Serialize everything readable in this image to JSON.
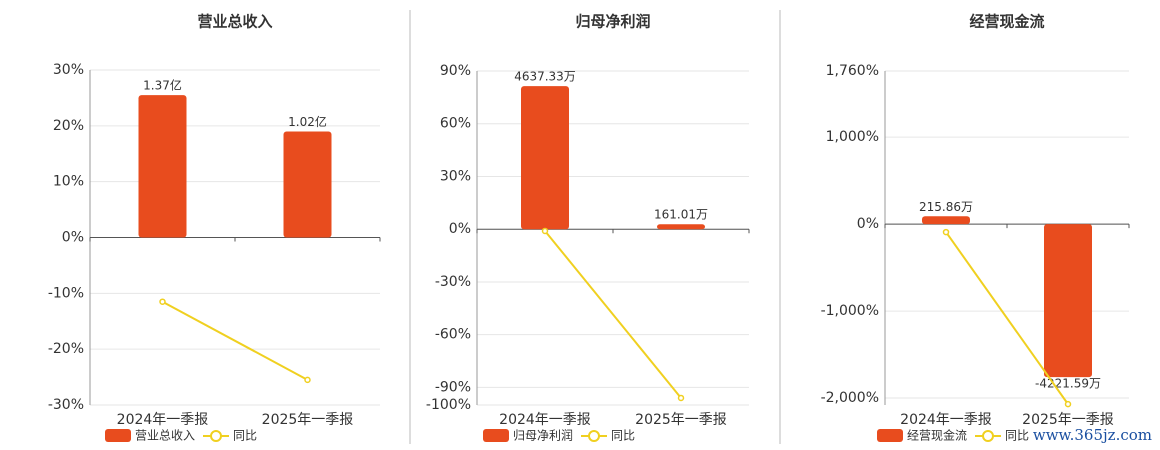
{
  "chart_data": [
    {
      "type": "combo",
      "title": "营业总收入",
      "categories": [
        "2024年一季报",
        "2025年一季报"
      ],
      "series": [
        {
          "name": "营业总收入",
          "type": "bar",
          "axis": "y2",
          "color": "#e84c1e",
          "values": [
            1.37,
            1.02
          ],
          "value_labels": [
            "1.37亿",
            "1.02亿"
          ]
        },
        {
          "name": "同比",
          "type": "line",
          "color": "#f0d020",
          "values": [
            -11.5,
            -25.5
          ]
        }
      ],
      "ylim": [
        -30,
        30
      ],
      "y2lim": [
        -1.612,
        1.612
      ],
      "yticks": [
        {
          "value": 30,
          "label": "30%"
        },
        {
          "value": 20,
          "label": "20%"
        },
        {
          "value": 10,
          "label": "10%"
        },
        {
          "value": 0,
          "label": "0%"
        },
        {
          "value": -10,
          "label": "-10%"
        },
        {
          "value": -20,
          "label": "-20%"
        },
        {
          "value": -30,
          "label": "-30%"
        }
      ],
      "grid": true
    },
    {
      "type": "combo",
      "title": "归母净利润",
      "categories": [
        "2024年一季报",
        "2025年一季报"
      ],
      "series": [
        {
          "name": "归母净利润",
          "type": "bar",
          "axis": "y2",
          "color": "#e84c1e",
          "values": [
            4637.33,
            161.01
          ],
          "value_labels": [
            "4637.33万",
            "161.01万"
          ]
        },
        {
          "name": "同比",
          "type": "line",
          "color": "#f0d020",
          "values": [
            -1,
            -96
          ]
        }
      ],
      "ylim": [
        -100,
        90
      ],
      "y2lim": [
        -5697,
        5127
      ],
      "yticks": [
        {
          "value": 90,
          "label": "90%"
        },
        {
          "value": 60,
          "label": "60%"
        },
        {
          "value": 30,
          "label": "30%"
        },
        {
          "value": 0,
          "label": "0%"
        },
        {
          "value": -30,
          "label": "-30%"
        },
        {
          "value": -60,
          "label": "-60%"
        },
        {
          "value": -90,
          "label": "-90%"
        },
        {
          "value": -100,
          "label": "-100%"
        }
      ],
      "grid": true
    },
    {
      "type": "combo",
      "title": "经营现金流",
      "categories": [
        "2024年一季报",
        "2025年一季报"
      ],
      "series": [
        {
          "name": "经营现金流",
          "type": "bar",
          "axis": "y2",
          "color": "#e84c1e",
          "values": [
            215.86,
            -4221.59
          ],
          "value_labels": [
            "215.86万",
            "-4221.59万"
          ]
        },
        {
          "name": "同比",
          "type": "line",
          "color": "#f0d020",
          "values": [
            -92,
            -2070
          ]
        }
      ],
      "ylim": [
        -2080,
        1760
      ],
      "y2lim": [
        -4992,
        4224
      ],
      "yticks": [
        {
          "value": 1760,
          "label": "1,760%"
        },
        {
          "value": 1000,
          "label": "1,000%"
        },
        {
          "value": 0,
          "label": "0%"
        },
        {
          "value": -1000,
          "label": "-1,000%"
        },
        {
          "value": -2000,
          "label": "-2,000%"
        }
      ],
      "grid": true
    }
  ],
  "watermark": "www.365jz.com"
}
